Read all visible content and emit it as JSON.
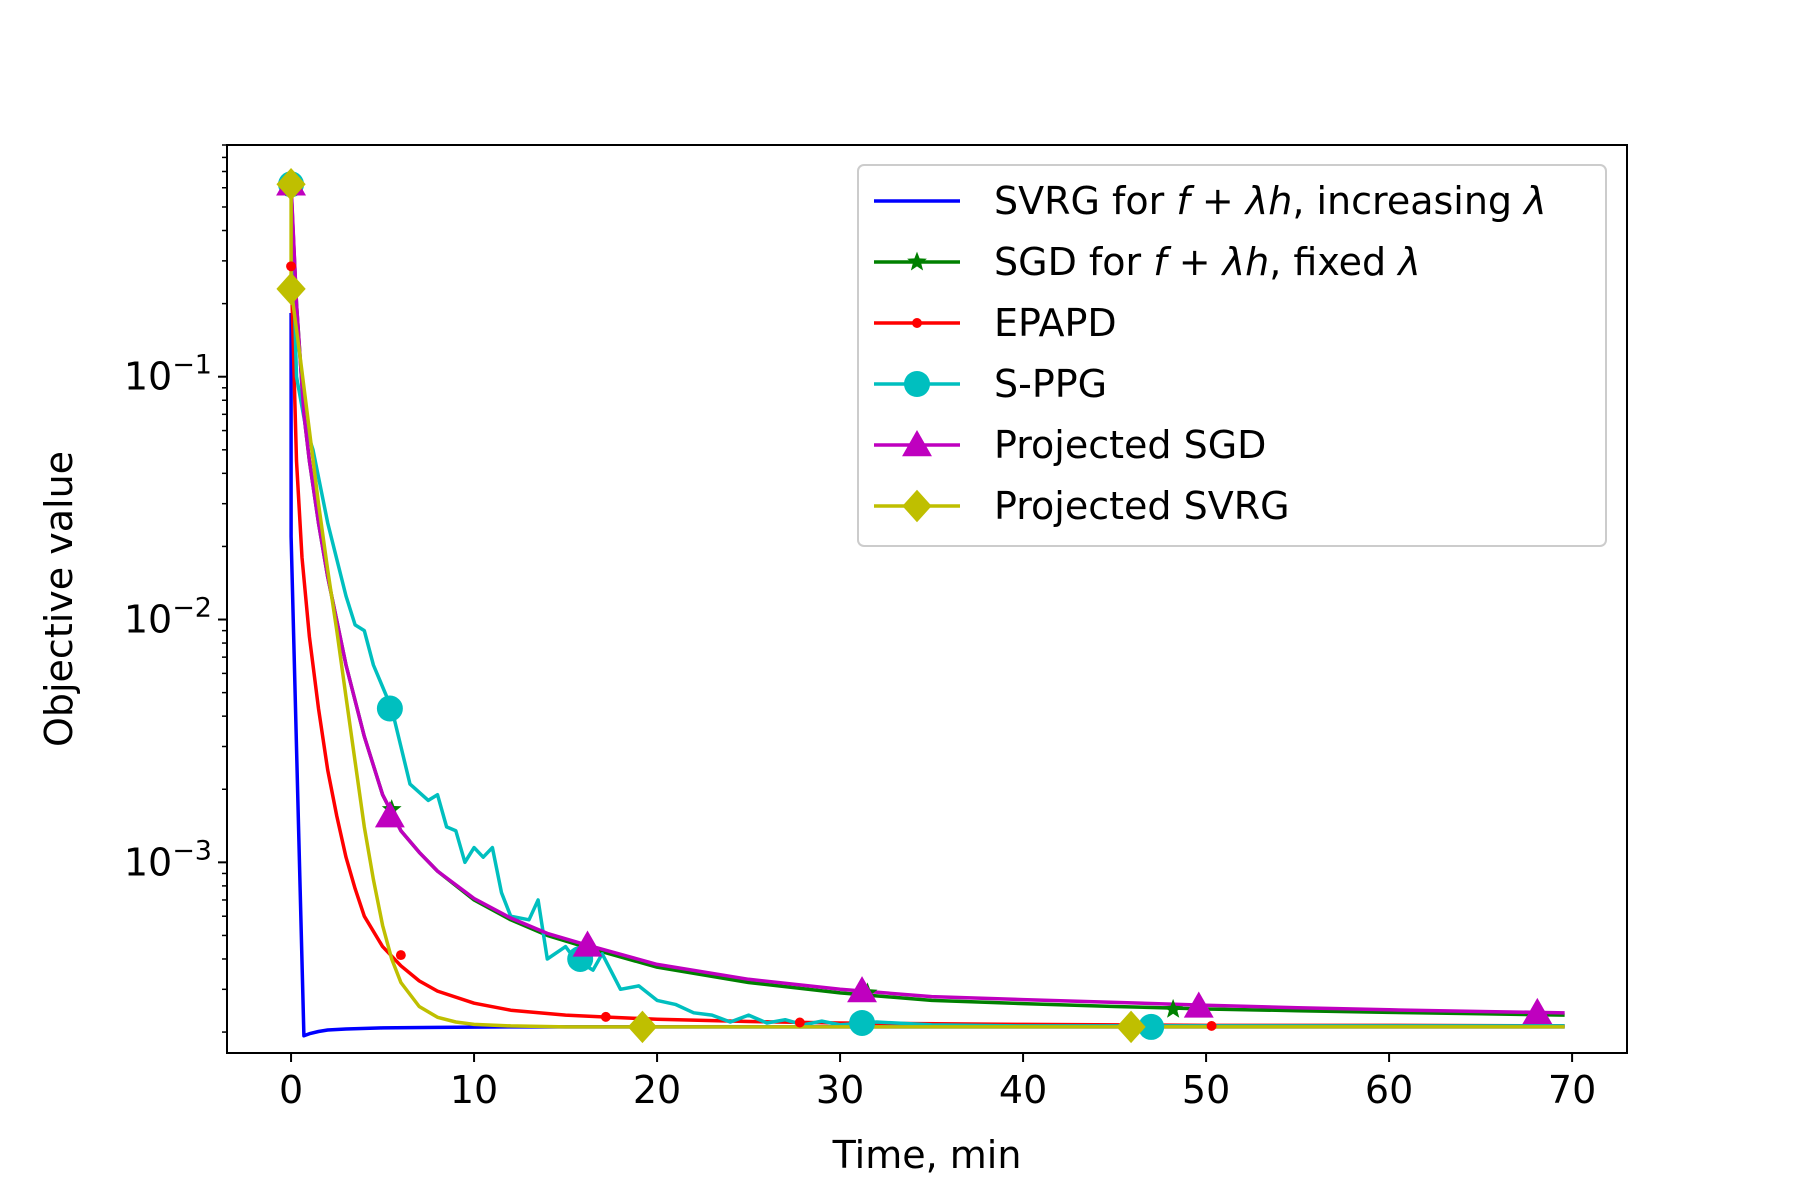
{
  "chart_data": {
    "type": "line",
    "title": "",
    "xlabel": "Time, min",
    "ylabel": "Objective value",
    "yscale": "log",
    "xlim": [
      -3.5,
      73
    ],
    "ylim": [
      0.000164,
      0.9
    ],
    "grid": false,
    "legend_position": "top-right",
    "x_ticks": [
      {
        "value": 0,
        "label": "0"
      },
      {
        "value": 10,
        "label": "10"
      },
      {
        "value": 20,
        "label": "20"
      },
      {
        "value": 30,
        "label": "30"
      },
      {
        "value": 40,
        "label": "40"
      },
      {
        "value": 50,
        "label": "50"
      },
      {
        "value": 60,
        "label": "60"
      },
      {
        "value": 70,
        "label": "70"
      }
    ],
    "y_ticks": [
      {
        "value": 0.1,
        "base": "10",
        "exp": "−1"
      },
      {
        "value": 0.01,
        "base": "10",
        "exp": "−2"
      },
      {
        "value": 0.001,
        "base": "10",
        "exp": "−3"
      }
    ],
    "series": [
      {
        "name": "SVRG for f + λh, increasing λ",
        "label_parts": [
          "SVRG for ",
          "f",
          " + ",
          "λh",
          ", increasing ",
          "λ"
        ],
        "color": "#0000ff",
        "marker": "none",
        "x": [
          0,
          0,
          0.7,
          1,
          1.5,
          2,
          3,
          5,
          8,
          12,
          20,
          30,
          40,
          50,
          60,
          69.5
        ],
        "y": [
          0.18,
          0.022,
          0.000193,
          0.000197,
          0.000201,
          0.000204,
          0.000206,
          0.000208,
          0.000209,
          0.00021,
          0.00021,
          0.00021,
          0.00021,
          0.00021,
          0.00021,
          0.00021
        ],
        "markers": []
      },
      {
        "name": "SGD for f + λh, fixed λ",
        "label_parts": [
          "SGD for ",
          "f",
          " + ",
          "λh",
          ", fixed ",
          "λ"
        ],
        "color": "#008000",
        "marker": "star",
        "x": [
          0,
          0.3,
          0.7,
          1,
          1.5,
          2,
          3,
          4,
          5,
          6,
          7,
          8,
          10,
          12,
          14,
          16,
          20,
          25,
          30,
          35,
          40,
          45,
          50,
          55,
          60,
          65,
          69.5
        ],
        "y": [
          0.6,
          0.2,
          0.07,
          0.045,
          0.025,
          0.015,
          0.0065,
          0.0033,
          0.0019,
          0.00135,
          0.0011,
          0.00092,
          0.0007,
          0.00058,
          0.0005,
          0.00045,
          0.00037,
          0.00032,
          0.00029,
          0.00027,
          0.000262,
          0.000255,
          0.000249,
          0.000245,
          0.000241,
          0.000238,
          0.000235
        ],
        "markers": [
          [
            0,
            0.6
          ],
          [
            5.5,
            0.00165
          ],
          [
            31.5,
            0.00029
          ],
          [
            48.2,
            0.000248
          ]
        ]
      },
      {
        "name": "EPAPD",
        "label_parts": [
          "EPAPD"
        ],
        "color": "#ff0000",
        "marker": "dot",
        "x": [
          0,
          0.3,
          0.6,
          1,
          1.5,
          2,
          2.5,
          3,
          3.5,
          4,
          5,
          6,
          7,
          8,
          10,
          12,
          15,
          17,
          20,
          25,
          30,
          40,
          50,
          60,
          69.5
        ],
        "y": [
          0.285,
          0.045,
          0.018,
          0.0085,
          0.0043,
          0.0024,
          0.00155,
          0.00105,
          0.00078,
          0.0006,
          0.00045,
          0.000375,
          0.000325,
          0.000295,
          0.000263,
          0.000246,
          0.000235,
          0.000231,
          0.000226,
          0.000221,
          0.000218,
          0.000215,
          0.000213,
          0.000213,
          0.000212
        ],
        "markers": [
          [
            0,
            0.285
          ],
          [
            6,
            0.000415
          ],
          [
            17.2,
            0.000231
          ],
          [
            27.8,
            0.000219
          ],
          [
            50.3,
            0.000212
          ]
        ]
      },
      {
        "name": "S-PPG",
        "label_parts": [
          "S-PPG"
        ],
        "color": "#00bfbf",
        "marker": "circle",
        "x": [
          0,
          0.3,
          0.8,
          1.2,
          2,
          3,
          3.5,
          4,
          4.5,
          5.5,
          6,
          6.5,
          7.5,
          8,
          8.5,
          9,
          9.5,
          10,
          10.5,
          11,
          11.5,
          12,
          13,
          13.5,
          14,
          15,
          15.5,
          16.5,
          17,
          18,
          19,
          20,
          21,
          22,
          23,
          24,
          25,
          26,
          27,
          28,
          29,
          30,
          32,
          35,
          40,
          45,
          50,
          55,
          60,
          65,
          69.5
        ],
        "y": [
          0.62,
          0.1,
          0.062,
          0.05,
          0.025,
          0.0125,
          0.0095,
          0.009,
          0.0065,
          0.0043,
          0.003,
          0.0021,
          0.0018,
          0.0019,
          0.0014,
          0.00135,
          0.001,
          0.00115,
          0.00105,
          0.00115,
          0.00075,
          0.0006,
          0.00058,
          0.0007,
          0.0004,
          0.00045,
          0.0004,
          0.00036,
          0.00042,
          0.0003,
          0.00031,
          0.00027,
          0.00026,
          0.00024,
          0.000235,
          0.00022,
          0.000235,
          0.000218,
          0.000225,
          0.000214,
          0.000222,
          0.000214,
          0.00022,
          0.000214,
          0.000212,
          0.000212,
          0.000212,
          0.000212,
          0.000212,
          0.000212,
          0.000212
        ],
        "markers": [
          [
            0,
            0.62
          ],
          [
            5.4,
            0.0043
          ],
          [
            15.8,
            0.0004
          ],
          [
            31.2,
            0.000218
          ],
          [
            47,
            0.00021
          ]
        ]
      },
      {
        "name": "Projected SGD",
        "label_parts": [
          "Projected SGD"
        ],
        "color": "#bf00bf",
        "marker": "triangle",
        "x": [
          0,
          0.3,
          0.7,
          1,
          1.5,
          2,
          3,
          4,
          5,
          6,
          7,
          8,
          10,
          12,
          14,
          16,
          20,
          25,
          30,
          35,
          40,
          45,
          50,
          55,
          60,
          65,
          69.5
        ],
        "y": [
          0.62,
          0.2,
          0.07,
          0.045,
          0.025,
          0.015,
          0.0065,
          0.0033,
          0.0019,
          0.00135,
          0.0011,
          0.00092,
          0.00071,
          0.00059,
          0.00051,
          0.00046,
          0.00038,
          0.00033,
          0.0003,
          0.00028,
          0.000272,
          0.000265,
          0.000258,
          0.000252,
          0.000247,
          0.000243,
          0.00024
        ],
        "markers": [
          [
            0,
            0.62
          ],
          [
            5.4,
            0.00155
          ],
          [
            16.2,
            0.000455
          ],
          [
            31.2,
            0.000295
          ],
          [
            49.6,
            0.000255
          ],
          [
            68.1,
            0.00024
          ]
        ]
      },
      {
        "name": "Projected SVRG",
        "label_parts": [
          "Projected SVRG"
        ],
        "color": "#bfbf00",
        "marker": "diamond",
        "x": [
          0,
          0,
          0.5,
          1,
          1.5,
          2,
          2.5,
          3,
          3.5,
          4,
          4.5,
          5,
          5.5,
          6,
          7,
          8,
          9,
          10,
          12,
          15,
          19,
          25,
          30,
          46,
          69.5
        ],
        "y": [
          0.62,
          0.23,
          0.12,
          0.06,
          0.03,
          0.016,
          0.009,
          0.0048,
          0.0026,
          0.0014,
          0.00085,
          0.00055,
          0.0004,
          0.00032,
          0.000255,
          0.00023,
          0.00022,
          0.000215,
          0.000212,
          0.00021,
          0.00021,
          0.00021,
          0.00021,
          0.00021,
          0.00021
        ],
        "markers": [
          [
            0,
            0.62
          ],
          [
            0,
            0.23
          ],
          [
            19.2,
            0.00021
          ],
          [
            45.9,
            0.00021
          ]
        ]
      }
    ]
  }
}
